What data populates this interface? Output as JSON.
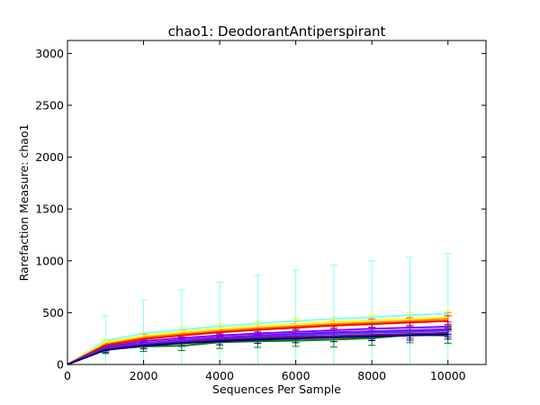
{
  "chart_data": {
    "type": "line",
    "title": "chao1: DeodorantAntiperspirant",
    "xlabel": "Sequences Per Sample",
    "ylabel": "Rarefaction Measure: chao1",
    "xlim": [
      0,
      11000
    ],
    "ylim": [
      0,
      3125
    ],
    "xticks": [
      "0",
      "2000",
      "4000",
      "6000",
      "8000",
      "10000"
    ],
    "yticks": [
      "0",
      "500",
      "1000",
      "1500",
      "2000",
      "2500",
      "3000"
    ],
    "grid": false,
    "legend": "none",
    "x": [
      0,
      1000,
      2000,
      3000,
      4000,
      5000,
      6000,
      7000,
      8000,
      9000,
      10000
    ],
    "series": [
      {
        "color": "#80ffff",
        "values": [
          0,
          230,
          300,
          335,
          370,
          395,
          420,
          440,
          455,
          475,
          490
        ],
        "error": [
          0,
          240,
          320,
          385,
          425,
          465,
          490,
          520,
          545,
          560,
          580
        ]
      },
      {
        "color": "#ffff00",
        "values": [
          0,
          215,
          275,
          315,
          345,
          370,
          390,
          410,
          425,
          440,
          455
        ],
        "error": [
          0,
          30,
          35,
          40,
          45,
          45,
          50,
          50,
          55,
          60,
          60
        ]
      },
      {
        "color": "#ff8000",
        "values": [
          0,
          195,
          260,
          295,
          325,
          350,
          370,
          390,
          405,
          420,
          440
        ],
        "error": [
          0,
          25,
          30,
          35,
          40,
          45,
          45,
          50,
          50,
          55,
          60
        ]
      },
      {
        "color": "#ff0000",
        "values": [
          0,
          185,
          245,
          280,
          310,
          335,
          355,
          375,
          390,
          405,
          420
        ],
        "error": [
          0,
          20,
          25,
          30,
          30,
          35,
          40,
          40,
          45,
          45,
          50
        ]
      },
      {
        "color": "#8000ff",
        "values": [
          0,
          170,
          225,
          255,
          280,
          300,
          315,
          330,
          345,
          355,
          365
        ],
        "error": [
          0,
          20,
          25,
          30,
          30,
          35,
          35,
          40,
          40,
          45,
          45
        ]
      },
      {
        "color": "#8000ff",
        "values": [
          0,
          160,
          205,
          235,
          260,
          280,
          295,
          310,
          320,
          330,
          340
        ],
        "error": [
          0,
          25,
          30,
          30,
          35,
          35,
          40,
          40,
          40,
          45,
          45
        ]
      },
      {
        "color": "#4040ff",
        "values": [
          0,
          155,
          200,
          225,
          245,
          265,
          280,
          295,
          305,
          315,
          325
        ],
        "error": [
          0,
          20,
          25,
          25,
          30,
          30,
          35,
          35,
          35,
          40,
          40
        ]
      },
      {
        "color": "#800080",
        "values": [
          0,
          150,
          190,
          215,
          240,
          255,
          265,
          275,
          285,
          295,
          305
        ],
        "error": [
          0,
          20,
          25,
          30,
          30,
          35,
          35,
          35,
          40,
          40,
          40
        ]
      },
      {
        "color": "#008000",
        "values": [
          0,
          145,
          175,
          180,
          215,
          225,
          230,
          240,
          255,
          285,
          280
        ],
        "error": [
          0,
          40,
          50,
          45,
          60,
          60,
          55,
          70,
          70,
          75,
          75
        ]
      },
      {
        "color": "#000080",
        "values": [
          0,
          140,
          180,
          205,
          225,
          240,
          250,
          260,
          270,
          280,
          290
        ],
        "error": [
          0,
          25,
          30,
          30,
          35,
          35,
          40,
          40,
          40,
          45,
          45
        ]
      }
    ]
  }
}
